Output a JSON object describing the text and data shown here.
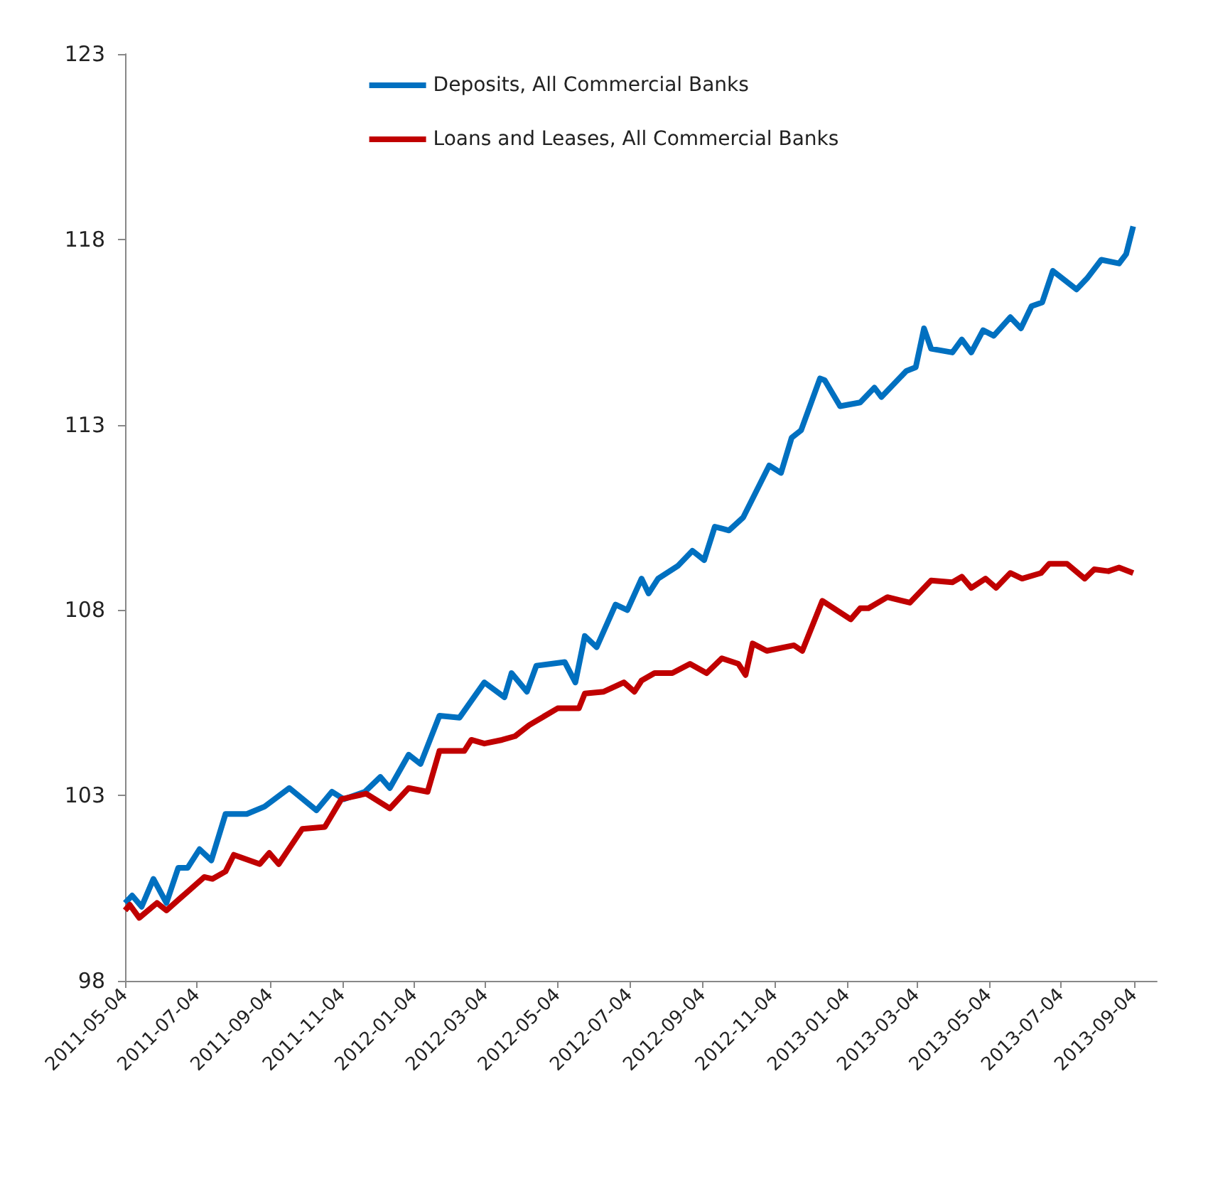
{
  "chart_data": {
    "type": "line",
    "ylim": [
      98,
      123
    ],
    "yticks": [
      98,
      103,
      108,
      113,
      118,
      123
    ],
    "xlim": [
      "2011-05-04",
      "2013-09-23"
    ],
    "xticks": [
      "2011-05-04",
      "2011-07-04",
      "2011-09-04",
      "2011-11-04",
      "2012-01-04",
      "2012-03-04",
      "2012-05-04",
      "2012-07-04",
      "2012-09-04",
      "2012-11-04",
      "2013-01-04",
      "2013-03-04",
      "2013-05-04",
      "2013-07-04",
      "2013-09-04"
    ],
    "grid": false,
    "legend": "top",
    "marker": "none",
    "line_style": "solid",
    "series": [
      {
        "name": "Deposits, All Commercial Banks",
        "color": "#0070c0",
        "x": [
          "2011-05-04",
          "2011-05-10",
          "2011-05-18",
          "2011-05-28",
          "2011-06-08",
          "2011-06-18",
          "2011-06-26",
          "2011-07-06",
          "2011-07-16",
          "2011-07-28",
          "2011-08-15",
          "2011-08-30",
          "2011-09-20",
          "2011-10-13",
          "2011-10-26",
          "2011-11-05",
          "2011-11-23",
          "2011-12-06",
          "2011-12-14",
          "2011-12-30",
          "2012-01-09",
          "2012-01-25",
          "2012-02-11",
          "2012-03-03",
          "2012-03-20",
          "2012-03-26",
          "2012-04-08",
          "2012-04-16",
          "2012-05-10",
          "2012-05-19",
          "2012-05-27",
          "2012-06-06",
          "2012-06-22",
          "2012-07-02",
          "2012-07-14",
          "2012-07-20",
          "2012-07-28",
          "2012-08-14",
          "2012-08-26",
          "2012-09-05",
          "2012-09-14",
          "2012-09-26",
          "2012-10-08",
          "2012-10-30",
          "2012-11-09",
          "2012-11-18",
          "2012-11-26",
          "2012-12-12",
          "2012-12-16",
          "2012-12-29",
          "2013-01-15",
          "2013-01-27",
          "2013-02-02",
          "2013-02-23",
          "2013-03-03",
          "2013-03-10",
          "2013-03-16",
          "2013-04-03",
          "2013-04-11",
          "2013-04-19",
          "2013-04-29",
          "2013-05-08",
          "2013-05-22",
          "2013-05-31",
          "2013-06-09",
          "2013-06-18",
          "2013-06-27",
          "2013-07-17",
          "2013-07-26",
          "2013-08-07",
          "2013-08-22",
          "2013-08-28",
          "2013-09-03"
        ],
        "values": [
          100.1,
          100.3,
          100.0,
          100.75,
          100.1,
          101.05,
          101.05,
          101.55,
          101.25,
          102.5,
          102.5,
          102.7,
          103.2,
          102.6,
          103.1,
          102.9,
          103.1,
          103.5,
          103.2,
          104.1,
          103.85,
          105.15,
          105.1,
          106.05,
          105.65,
          106.3,
          105.8,
          106.5,
          106.6,
          106.05,
          107.3,
          107.0,
          108.15,
          108.0,
          108.85,
          108.45,
          108.85,
          109.2,
          109.6,
          109.35,
          110.25,
          110.15,
          110.5,
          111.9,
          111.7,
          112.65,
          112.85,
          114.25,
          114.2,
          113.5,
          113.6,
          114.0,
          113.75,
          114.45,
          114.55,
          115.6,
          115.05,
          114.95,
          115.3,
          114.95,
          115.55,
          115.4,
          115.9,
          115.6,
          116.2,
          116.3,
          117.15,
          116.65,
          116.95,
          117.45,
          117.35,
          117.6,
          118.35
        ]
      },
      {
        "name": "Loans and Leases, All Commercial Banks",
        "color": "#c00000",
        "x": [
          "2011-05-04",
          "2011-05-08",
          "2011-05-16",
          "2011-05-31",
          "2011-06-08",
          "2011-06-24",
          "2011-07-10",
          "2011-07-17",
          "2011-07-28",
          "2011-08-04",
          "2011-08-26",
          "2011-09-03",
          "2011-09-11",
          "2011-10-01",
          "2011-10-20",
          "2011-11-03",
          "2011-11-24",
          "2011-12-14",
          "2011-12-30",
          "2012-01-15",
          "2012-01-25",
          "2012-02-15",
          "2012-02-21",
          "2012-03-03",
          "2012-03-18",
          "2012-03-29",
          "2012-04-10",
          "2012-05-04",
          "2012-05-22",
          "2012-05-27",
          "2012-06-12",
          "2012-06-29",
          "2012-07-08",
          "2012-07-14",
          "2012-07-25",
          "2012-08-09",
          "2012-08-24",
          "2012-09-07",
          "2012-09-20",
          "2012-10-04",
          "2012-10-10",
          "2012-10-16",
          "2012-10-28",
          "2012-11-20",
          "2012-11-27",
          "2012-12-14",
          "2013-01-07",
          "2013-01-15",
          "2013-01-22",
          "2013-02-07",
          "2013-02-26",
          "2013-03-16",
          "2013-04-03",
          "2013-04-11",
          "2013-04-19",
          "2013-05-01",
          "2013-05-10",
          "2013-05-22",
          "2013-06-01",
          "2013-06-17",
          "2013-06-24",
          "2013-07-09",
          "2013-07-24",
          "2013-08-01",
          "2013-08-13",
          "2013-08-22",
          "2013-09-03"
        ],
        "values": [
          99.9,
          100.05,
          99.7,
          100.1,
          99.9,
          100.35,
          100.8,
          100.75,
          100.95,
          101.4,
          101.15,
          101.45,
          101.15,
          102.1,
          102.15,
          102.9,
          103.05,
          102.65,
          103.2,
          103.1,
          104.2,
          104.2,
          104.5,
          104.4,
          104.5,
          104.6,
          104.9,
          105.35,
          105.35,
          105.75,
          105.8,
          106.05,
          105.8,
          106.1,
          106.3,
          106.3,
          106.55,
          106.3,
          106.7,
          106.55,
          106.25,
          107.1,
          106.9,
          107.05,
          106.9,
          108.25,
          107.75,
          108.05,
          108.05,
          108.35,
          108.2,
          108.8,
          108.75,
          108.9,
          108.6,
          108.85,
          108.6,
          109.0,
          108.85,
          109.0,
          109.25,
          109.25,
          108.85,
          109.1,
          109.05,
          109.15,
          109.0
        ]
      }
    ]
  }
}
